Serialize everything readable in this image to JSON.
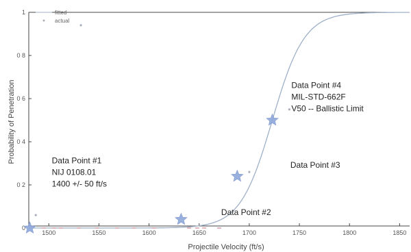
{
  "chart_data": {
    "type": "scatter",
    "title": "",
    "xlabel": "Projectile Velocity (ft/s)",
    "ylabel": "Probability of Penetration",
    "xlim": [
      1480,
      1860
    ],
    "ylim": [
      0,
      1
    ],
    "x_ticks": [
      "1500",
      "1550",
      "1600",
      "1650",
      "1700",
      "1750",
      "1800",
      "1850"
    ],
    "x_tick_values": [
      1500,
      1550,
      1600,
      1650,
      1700,
      1750,
      1800,
      1850
    ],
    "y_ticks": [
      "0",
      "0 2",
      "0 4",
      "0 6",
      "0 8",
      "1"
    ],
    "y_tick_values": [
      0,
      0.2,
      0.4,
      0.6,
      0.8,
      1.0
    ],
    "grid": false,
    "legend": {
      "placement": "top-left",
      "entries": [
        "fitted",
        "actual"
      ]
    },
    "series": [
      {
        "name": "fitted",
        "kind": "logistic-curve",
        "v50": 1723,
        "scale": 16,
        "color": "#9fb0c8"
      },
      {
        "name": "actual",
        "kind": "points",
        "color": "#aab0bb",
        "points": [
          {
            "x": 1487,
            "y": 0.06
          },
          {
            "x": 1532,
            "y": 0.94
          },
          {
            "x": 1700,
            "y": 0.26
          },
          {
            "x": 1740,
            "y": 0.55
          }
        ]
      },
      {
        "name": "zero-observations",
        "kind": "points",
        "color": "#d9a0a8",
        "points": [
          {
            "x": 1495,
            "y": 0
          },
          {
            "x": 1505,
            "y": 0
          },
          {
            "x": 1512,
            "y": 0
          },
          {
            "x": 1530,
            "y": 0
          },
          {
            "x": 1548,
            "y": 0
          },
          {
            "x": 1568,
            "y": 0
          },
          {
            "x": 1585,
            "y": 0
          },
          {
            "x": 1605,
            "y": 0
          },
          {
            "x": 1640,
            "y": 0
          },
          {
            "x": 1648,
            "y": 0
          },
          {
            "x": 1655,
            "y": 0
          },
          {
            "x": 1670,
            "y": 0
          }
        ]
      },
      {
        "name": "data-points",
        "kind": "stars",
        "color": "#8fa8dc",
        "points": [
          {
            "x": 1481,
            "y": 0.0
          },
          {
            "x": 1632,
            "y": 0.04
          },
          {
            "x": 1688,
            "y": 0.24
          },
          {
            "x": 1723,
            "y": 0.5
          }
        ]
      }
    ],
    "annotations": [
      {
        "lines": [
          "Data Point #1",
          "NIJ 0108.01",
          "1400 +/- 50 ft/s"
        ],
        "x": 1503,
        "y": 0.3
      },
      {
        "lines": [
          "Data Point #2"
        ],
        "x": 1672,
        "y": 0.06
      },
      {
        "lines": [
          "Data Point #3"
        ],
        "x": 1741,
        "y": 0.28
      },
      {
        "lines": [
          "Data Point #4",
          "MIL-STD-662F",
          "V50 -- Ballistic Limit"
        ],
        "x": 1742,
        "y": 0.65
      }
    ]
  }
}
